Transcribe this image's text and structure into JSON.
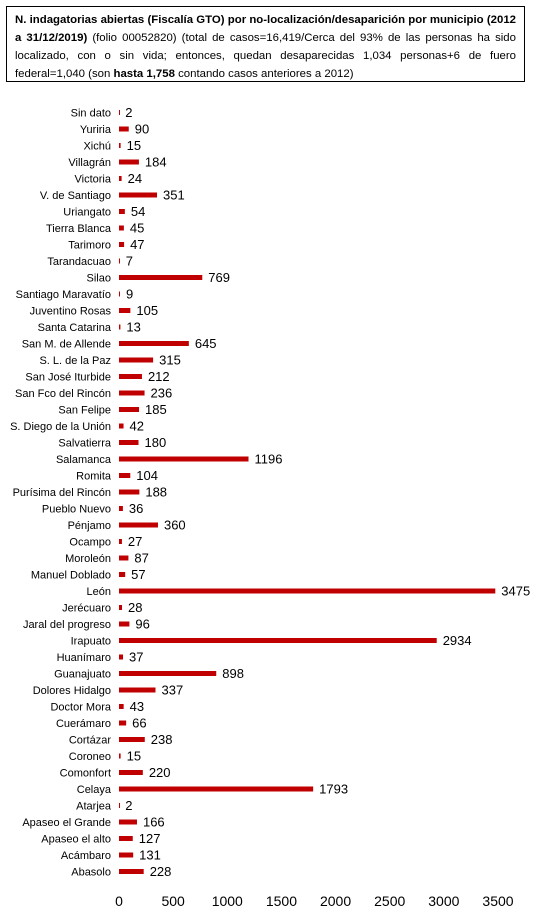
{
  "title": {
    "part1": "N. indagatorias abiertas (Fiscalía GTO) por no-localización/desaparición por municipio (2012 a 31/12/2019)",
    "part2": " (folio 00052820) (total de casos=16,419/Cerca del 93% de las personas ha sido localizado, con o sin vida; entonces, quedan desaparecidas 1,034 personas+6 de fuero federal=1,040 (son ",
    "part3": "hasta 1,758",
    "part4": " contando casos anteriores a 2012)"
  },
  "chart_data": {
    "type": "bar",
    "orientation": "horizontal",
    "bar_color": "#C00000",
    "grid": false,
    "xlim": [
      0,
      3500
    ],
    "xticks": [
      0,
      500,
      1000,
      1500,
      2000,
      2500,
      3000,
      3500
    ],
    "categories": [
      "Sin dato",
      "Yuriria",
      "Xichú",
      "Villagrán",
      "Victoria",
      "V. de Santiago",
      "Uriangato",
      "Tierra Blanca",
      "Tarimoro",
      "Tarandacuao",
      "Silao",
      "Santiago Maravatío",
      "Juventino Rosas",
      "Santa Catarina",
      "San M. de Allende",
      "S. L. de la Paz",
      "San José Iturbide",
      "San Fco del Rincón",
      "San Felipe",
      "S. Diego de la Unión",
      "Salvatierra",
      "Salamanca",
      "Romita",
      "Purísima del Rincón",
      "Pueblo Nuevo",
      "Pénjamo",
      "Ocampo",
      "Moroleón",
      "Manuel Doblado",
      "León",
      "Jerécuaro",
      "Jaral del progreso",
      "Irapuato",
      "Huanímaro",
      "Guanajuato",
      "Dolores Hidalgo",
      "Doctor Mora",
      "Cuerámaro",
      "Cortázar",
      "Coroneo",
      "Comonfort",
      "Celaya",
      "Atarjea",
      "Apaseo el Grande",
      "Apaseo el alto",
      "Acámbaro",
      "Abasolo"
    ],
    "values": [
      2,
      90,
      15,
      184,
      24,
      351,
      54,
      45,
      47,
      7,
      769,
      9,
      105,
      13,
      645,
      315,
      212,
      236,
      185,
      42,
      180,
      1196,
      104,
      188,
      36,
      360,
      27,
      87,
      57,
      3475,
      28,
      96,
      2934,
      37,
      898,
      337,
      43,
      66,
      238,
      15,
      220,
      1793,
      2,
      166,
      127,
      131,
      228
    ]
  }
}
